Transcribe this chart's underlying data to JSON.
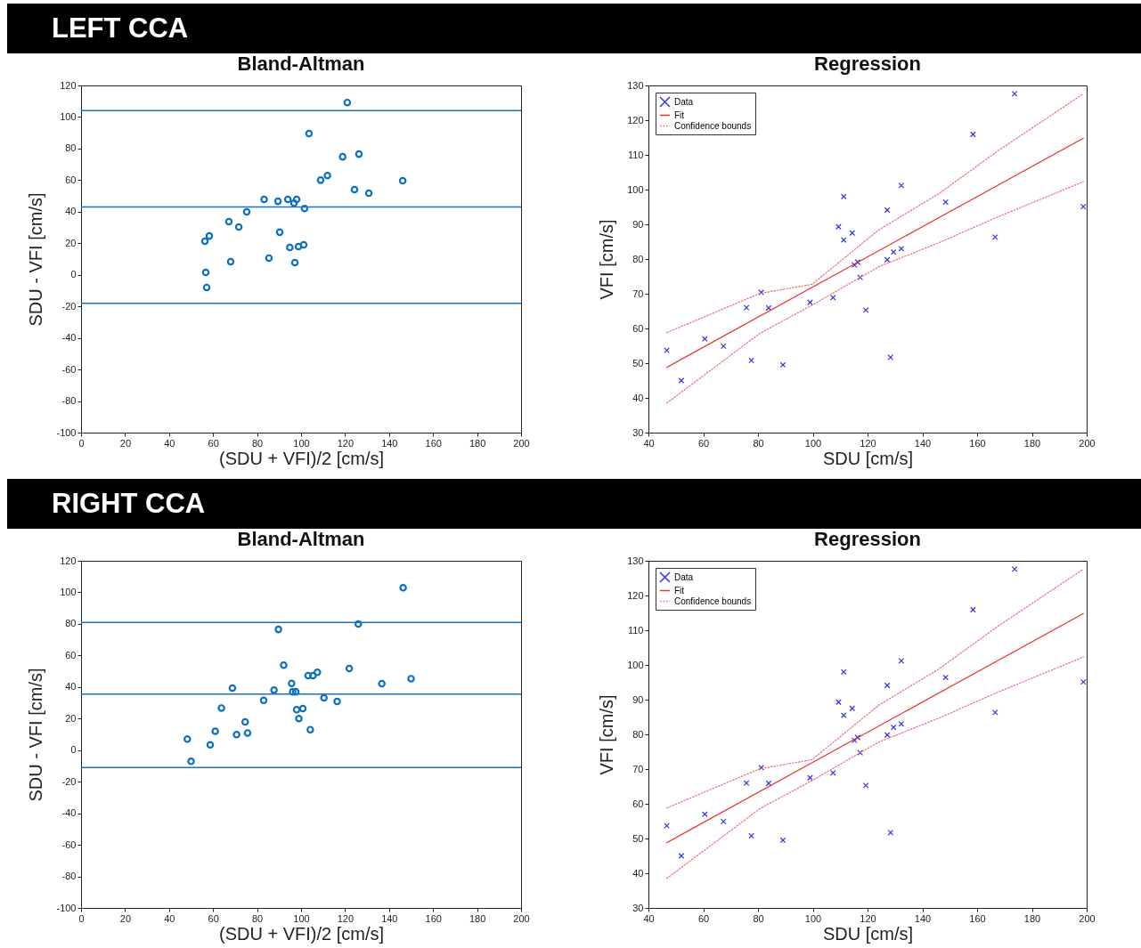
{
  "chart_data": [
    {
      "type": "other",
      "title": "LEFT CCA"
    },
    {
      "type": "scatter",
      "title": "Bland-Altman",
      "xlabel": "(SDU + VFI)/2 [cm/s]",
      "ylabel": "SDU - VFI [cm/s]",
      "xlim": [
        0,
        200
      ],
      "xticks": [
        0,
        20,
        40,
        60,
        80,
        100,
        120,
        140,
        160,
        180,
        200
      ],
      "ylim": [
        -100,
        120
      ],
      "yticks": [
        -100,
        -80,
        -60,
        -40,
        -20,
        0,
        20,
        40,
        60,
        80,
        100,
        120
      ],
      "marker": "circle",
      "series": [
        {
          "color": "#0e6fbf",
          "x": [
            56.3,
            58.3,
            56.7,
            57.1,
            67.2,
            68,
            71.7,
            75.3,
            83.2,
            85.4,
            89.5,
            90.3,
            94,
            94.9,
            96.8,
            97.2,
            98,
            98.8,
            101.2,
            101.6,
            103.6,
            108.9,
            112,
            118.9,
            121,
            126.3,
            124.3,
            130.8,
            146.2
          ],
          "values": [
            21.3,
            24.6,
            1.5,
            -8,
            33.7,
            8.3,
            30.3,
            39.9,
            47.8,
            10.6,
            46.6,
            27,
            47.8,
            17.3,
            45.4,
            7.7,
            47.8,
            17.9,
            19,
            42,
            89.5,
            60,
            62.9,
            74.8,
            109.2,
            76.5,
            54,
            51.7,
            59.6
          ]
        }
      ],
      "ref_lines": [
        {
          "axis": "y",
          "value": 104,
          "color": "#1a73c0"
        },
        {
          "axis": "y",
          "value": 43,
          "color": "#1a73c0"
        },
        {
          "axis": "y",
          "value": -18,
          "color": "#1a73c0"
        }
      ]
    },
    {
      "type": "scatter",
      "title": "Regression",
      "xlabel": "SDU [cm/s]",
      "ylabel": "VFI [cm/s]",
      "xlim": [
        40,
        200
      ],
      "xticks": [
        40,
        60,
        80,
        100,
        120,
        140,
        160,
        180,
        200
      ],
      "ylim": [
        30,
        130
      ],
      "yticks": [
        30,
        40,
        50,
        60,
        70,
        80,
        90,
        100,
        110,
        120,
        130
      ],
      "legend": "top left",
      "series": [
        {
          "name": "Data",
          "type": "scatter",
          "marker": "cross",
          "color": "#3333e0",
          "x": [
            46.7,
            52,
            60.6,
            67.4,
            75.8,
            77.6,
            81.2,
            83.9,
            89.1,
            99,
            107.4,
            109.4,
            111.3,
            111.3,
            114.4,
            115.2,
            116.4,
            117.3,
            119.4,
            127.2,
            127.2,
            128.4,
            129.5,
            132.3,
            132.3,
            148.5,
            158.5,
            166.6,
            173.7,
            198.8
          ],
          "values": [
            53.7,
            45,
            57,
            54.9,
            66,
            50.8,
            70.4,
            65.9,
            49.5,
            67.5,
            68.9,
            89.3,
            98,
            85.5,
            87.5,
            78.3,
            79.1,
            74.7,
            65.3,
            94.1,
            79.8,
            51.7,
            82,
            101.2,
            83,
            96.4,
            115.9,
            86.3,
            127.6,
            95.1
          ]
        },
        {
          "name": "Fit",
          "type": "line",
          "line_style": "solid",
          "color": "#e8302a",
          "x": [
            46.7,
            198.8
          ],
          "values": [
            48.8,
            114.8
          ]
        },
        {
          "name": "Confidence bounds",
          "type": "line",
          "line_style": "dotted",
          "color": "#e87070",
          "x": [
            46.7,
            80.7,
            99.7,
            124.1,
            145.8,
            167.5,
            198.8
          ],
          "values": [
            58.8,
            70.1,
            72.7,
            88.4,
            98.7,
            111.1,
            127.6
          ]
        },
        {
          "type": "line",
          "line_style": "dotted",
          "color": "#e87070",
          "x": [
            46.7,
            80.7,
            99.7,
            124.1,
            145.8,
            167.5,
            198.8
          ],
          "values": [
            38.5,
            58.6,
            66.7,
            77.8,
            84.6,
            92.1,
            102.3
          ]
        }
      ]
    },
    {
      "type": "other",
      "title": "RIGHT CCA"
    },
    {
      "type": "scatter",
      "title": "Bland-Altman",
      "xlabel": "(SDU + VFI)/2 [cm/s]",
      "ylabel": "SDU - VFI [cm/s]",
      "xlim": [
        0,
        200
      ],
      "xticks": [
        0,
        20,
        40,
        60,
        80,
        100,
        120,
        140,
        160,
        180,
        200
      ],
      "ylim": [
        -100,
        120
      ],
      "yticks": [
        -100,
        -80,
        -60,
        -40,
        -20,
        0,
        20,
        40,
        60,
        80,
        100,
        120
      ],
      "marker": "circle",
      "series": [
        {
          "color": "#0e6fbf",
          "x": [
            48.3,
            50,
            58.7,
            61,
            63.8,
            68.8,
            70.7,
            74.6,
            75.7,
            83,
            87.7,
            89.7,
            92.1,
            95.7,
            96.2,
            97.6,
            98,
            99,
            100.8,
            103.2,
            105.4,
            104.2,
            107.4,
            110.4,
            116.4,
            121.9,
            126,
            136.7,
            146.4,
            150
          ],
          "values": [
            7,
            -7.1,
            3.4,
            12,
            26.7,
            39.3,
            9.8,
            17.9,
            10.9,
            31.6,
            38,
            76.5,
            53.8,
            42.3,
            37,
            37,
            25.6,
            20,
            26.3,
            47.2,
            47.2,
            13,
            49.3,
            33.1,
            30.9,
            51.7,
            79.9,
            42.1,
            102.9,
            45.3
          ]
        }
      ],
      "ref_lines": [
        {
          "axis": "y",
          "value": 81,
          "color": "#1a73c0"
        },
        {
          "axis": "y",
          "value": 35.5,
          "color": "#1a73c0"
        },
        {
          "axis": "y",
          "value": -11,
          "color": "#1a73c0"
        }
      ]
    },
    {
      "type": "scatter",
      "title": "Regression",
      "xlabel": "SDU [cm/s]",
      "ylabel": "VFI [cm/s]",
      "xlim": [
        40,
        200
      ],
      "xticks": [
        40,
        60,
        80,
        100,
        120,
        140,
        160,
        180,
        200
      ],
      "ylim": [
        30,
        130
      ],
      "yticks": [
        30,
        40,
        50,
        60,
        70,
        80,
        90,
        100,
        110,
        120,
        130
      ],
      "legend": "top left",
      "series": [
        {
          "name": "Data",
          "type": "scatter",
          "marker": "cross",
          "color": "#3333e0",
          "x": [
            46.7,
            52,
            60.6,
            67.4,
            75.8,
            77.6,
            81.2,
            83.9,
            89.1,
            99,
            107.4,
            109.4,
            111.3,
            111.3,
            114.4,
            115.2,
            116.4,
            117.3,
            119.4,
            127.2,
            127.2,
            128.4,
            129.5,
            132.3,
            132.3,
            148.5,
            158.5,
            166.6,
            173.7,
            198.8
          ],
          "values": [
            53.7,
            45,
            57,
            54.9,
            66,
            50.8,
            70.4,
            65.9,
            49.5,
            67.5,
            68.9,
            89.3,
            98,
            85.5,
            87.5,
            78.3,
            79.1,
            74.7,
            65.3,
            94.1,
            79.8,
            51.7,
            82,
            101.2,
            83,
            96.4,
            115.9,
            86.3,
            127.6,
            95.1
          ]
        },
        {
          "name": "Fit",
          "type": "line",
          "line_style": "solid",
          "color": "#e8302a",
          "x": [
            46.7,
            198.8
          ],
          "values": [
            48.8,
            114.8
          ]
        },
        {
          "name": "Confidence bounds",
          "type": "line",
          "line_style": "dotted",
          "color": "#e87070",
          "x": [
            46.7,
            80.7,
            99.7,
            124.1,
            145.8,
            167.5,
            198.8
          ],
          "values": [
            58.8,
            70.1,
            72.7,
            88.4,
            98.7,
            111.1,
            127.6
          ]
        },
        {
          "type": "line",
          "line_style": "dotted",
          "color": "#e87070",
          "x": [
            46.7,
            80.7,
            99.7,
            124.1,
            145.8,
            167.5,
            198.8
          ],
          "values": [
            38.5,
            58.6,
            66.7,
            77.8,
            84.6,
            92.1,
            102.3
          ]
        }
      ]
    }
  ]
}
